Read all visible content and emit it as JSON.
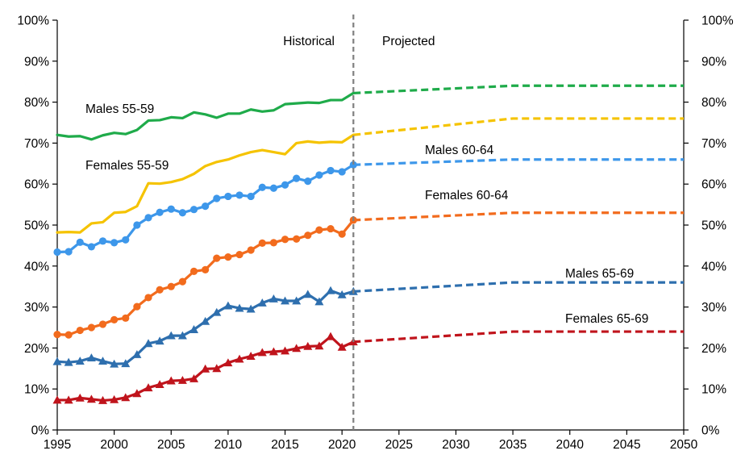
{
  "chart_data": {
    "type": "line",
    "title": "",
    "xlabel": "",
    "ylabel": "",
    "xlim": [
      1995,
      2050
    ],
    "ylim": [
      0,
      100
    ],
    "x_ticks": [
      "1995",
      "2000",
      "2005",
      "2010",
      "2015",
      "2020",
      "2025",
      "2030",
      "2035",
      "2040",
      "2045",
      "2050"
    ],
    "y_ticks_left": [
      "0%",
      "10%",
      "20%",
      "30%",
      "40%",
      "50%",
      "60%",
      "70%",
      "80%",
      "90%",
      "100%"
    ],
    "y_ticks_right": [
      "0%",
      "10%",
      "20%",
      "30%",
      "40%",
      "50%",
      "60%",
      "70%",
      "80%",
      "90%",
      "100%"
    ],
    "grid": false,
    "legend": "none",
    "divider": {
      "year": 2021
    },
    "annotations": {
      "historical": "Historical",
      "projected": "Projected"
    },
    "series": [
      {
        "name": "Males 55-59",
        "color": "#1fab4a",
        "marker": "none",
        "historical": {
          "x": [
            1995,
            1996,
            1997,
            1998,
            1999,
            2000,
            2001,
            2002,
            2003,
            2004,
            2005,
            2006,
            2007,
            2008,
            2009,
            2010,
            2011,
            2012,
            2013,
            2014,
            2015,
            2016,
            2017,
            2018,
            2019,
            2020,
            2021
          ],
          "y": [
            72.0,
            71.6,
            71.7,
            70.9,
            71.9,
            72.5,
            72.2,
            73.2,
            75.5,
            75.6,
            76.3,
            76.1,
            77.5,
            77.0,
            76.2,
            77.2,
            77.2,
            78.2,
            77.7,
            78.0,
            79.5,
            79.7,
            79.9,
            79.8,
            80.5,
            80.5,
            82.2
          ]
        },
        "projected": {
          "x": [
            2021,
            2035,
            2050
          ],
          "y": [
            82.2,
            84.0,
            84.0
          ]
        }
      },
      {
        "name": "Females 55-59",
        "color": "#f5c300",
        "marker": "none",
        "historical": {
          "x": [
            1995,
            1996,
            1997,
            1998,
            1999,
            2000,
            2001,
            2002,
            2003,
            2004,
            2005,
            2006,
            2007,
            2008,
            2009,
            2010,
            2011,
            2012,
            2013,
            2014,
            2015,
            2016,
            2017,
            2018,
            2019,
            2020,
            2021
          ],
          "y": [
            48.2,
            48.3,
            48.2,
            50.4,
            50.7,
            53.0,
            53.2,
            54.6,
            60.2,
            60.1,
            60.5,
            61.2,
            62.5,
            64.4,
            65.4,
            66.0,
            67.0,
            67.8,
            68.3,
            67.8,
            67.3,
            70.0,
            70.4,
            70.1,
            70.3,
            70.2,
            72.0
          ]
        },
        "projected": {
          "x": [
            2021,
            2035,
            2050
          ],
          "y": [
            72.0,
            76.0,
            76.0
          ]
        }
      },
      {
        "name": "Males 60-64",
        "color": "#3d97ea",
        "marker": "circle",
        "historical": {
          "x": [
            1995,
            1996,
            1997,
            1998,
            1999,
            2000,
            2001,
            2002,
            2003,
            2004,
            2005,
            2006,
            2007,
            2008,
            2009,
            2010,
            2011,
            2012,
            2013,
            2014,
            2015,
            2016,
            2017,
            2018,
            2019,
            2020,
            2021
          ],
          "y": [
            43.4,
            43.5,
            45.8,
            44.7,
            46.1,
            45.7,
            46.4,
            50.0,
            51.8,
            53.1,
            53.9,
            53.0,
            53.8,
            54.6,
            56.5,
            57.0,
            57.3,
            57.0,
            59.2,
            59.0,
            59.8,
            61.4,
            60.7,
            62.2,
            63.3,
            63.0,
            64.7
          ]
        },
        "projected": {
          "x": [
            2021,
            2035,
            2050
          ],
          "y": [
            64.7,
            66.0,
            66.0
          ]
        }
      },
      {
        "name": "Females 60-64",
        "color": "#f26b1d",
        "marker": "circle",
        "historical": {
          "x": [
            1995,
            1996,
            1997,
            1998,
            1999,
            2000,
            2001,
            2002,
            2003,
            2004,
            2005,
            2006,
            2007,
            2008,
            2009,
            2010,
            2011,
            2012,
            2013,
            2014,
            2015,
            2016,
            2017,
            2018,
            2019,
            2020,
            2021
          ],
          "y": [
            23.3,
            23.2,
            24.3,
            25.0,
            25.8,
            26.9,
            27.3,
            30.1,
            32.3,
            34.2,
            35.0,
            36.2,
            38.7,
            39.1,
            41.9,
            42.2,
            42.8,
            43.9,
            45.6,
            45.7,
            46.5,
            46.6,
            47.5,
            48.8,
            49.1,
            47.8,
            51.2
          ]
        },
        "projected": {
          "x": [
            2021,
            2035,
            2050
          ],
          "y": [
            51.2,
            53.0,
            53.0
          ]
        }
      },
      {
        "name": "Males 65-69",
        "color": "#2e6fae",
        "marker": "triangle",
        "historical": {
          "x": [
            1995,
            1996,
            1997,
            1998,
            1999,
            2000,
            2001,
            2002,
            2003,
            2004,
            2005,
            2006,
            2007,
            2008,
            2009,
            2010,
            2011,
            2012,
            2013,
            2014,
            2015,
            2016,
            2017,
            2018,
            2019,
            2020,
            2021
          ],
          "y": [
            16.7,
            16.5,
            16.8,
            17.6,
            16.8,
            16.1,
            16.2,
            18.4,
            21.1,
            21.7,
            23.0,
            23.0,
            24.5,
            26.5,
            28.7,
            30.3,
            29.7,
            29.5,
            31.0,
            32.0,
            31.5,
            31.5,
            33.1,
            31.3,
            34.0,
            33.0,
            33.8
          ]
        },
        "projected": {
          "x": [
            2021,
            2035,
            2050
          ],
          "y": [
            33.8,
            36.0,
            36.0
          ]
        }
      },
      {
        "name": "Females 65-69",
        "color": "#c0141c",
        "marker": "triangle",
        "historical": {
          "x": [
            1995,
            1996,
            1997,
            1998,
            1999,
            2000,
            2001,
            2002,
            2003,
            2004,
            2005,
            2006,
            2007,
            2008,
            2009,
            2010,
            2011,
            2012,
            2013,
            2014,
            2015,
            2016,
            2017,
            2018,
            2019,
            2020,
            2021
          ],
          "y": [
            7.3,
            7.3,
            7.8,
            7.5,
            7.2,
            7.4,
            7.9,
            8.9,
            10.3,
            11.1,
            12.0,
            12.1,
            12.5,
            14.9,
            15.0,
            16.4,
            17.3,
            18.0,
            18.9,
            19.1,
            19.3,
            19.9,
            20.4,
            20.5,
            22.8,
            20.2,
            21.5
          ]
        },
        "projected": {
          "x": [
            2021,
            2035,
            2050
          ],
          "y": [
            21.5,
            24.0,
            24.0
          ]
        }
      }
    ],
    "series_labels": [
      {
        "series": "Males 55-59",
        "text": "Males 55-59"
      },
      {
        "series": "Females 55-59",
        "text": "Females 55-59"
      },
      {
        "series": "Males 60-64",
        "text": "Males 60-64"
      },
      {
        "series": "Females 60-64",
        "text": "Females 60-64"
      },
      {
        "series": "Males 65-69",
        "text": "Males 65-69"
      },
      {
        "series": "Females 65-69",
        "text": "Females 65-69"
      }
    ]
  }
}
